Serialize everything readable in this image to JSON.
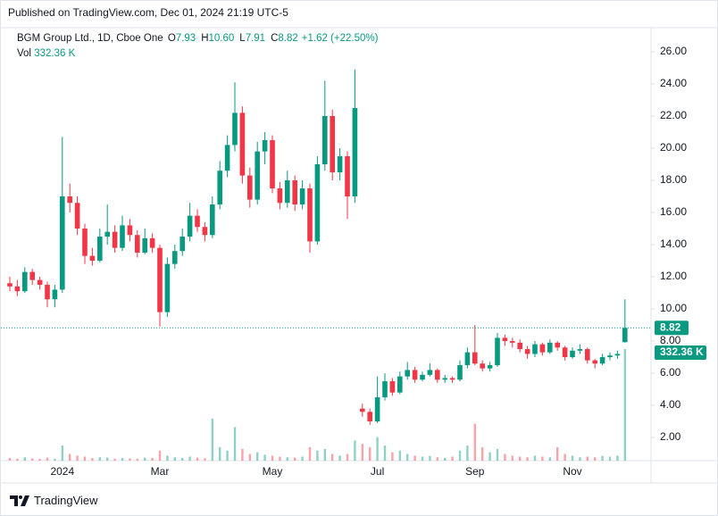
{
  "header": {
    "published": "Published on TradingView.com, Dec 01, 2024 21:19 UTC-5",
    "brand": "TradingView"
  },
  "chart_data": {
    "type": "candlestick",
    "title": "BGM Group Ltd., 1D, Cboe One",
    "ohlc_legend": [
      {
        "key": "O",
        "value": "7.93"
      },
      {
        "key": "H",
        "value": "10.60"
      },
      {
        "key": "L",
        "value": "7.91"
      },
      {
        "key": "C",
        "value": "8.82"
      }
    ],
    "change": "+1.62 (+22.50%)",
    "volume_title": "Vol",
    "volume_label": "332.36 K",
    "up_color": "#089981",
    "down_color": "#f23645",
    "categories": [
      null,
      null,
      null,
      null,
      null,
      null,
      null,
      "2024",
      null,
      null,
      null,
      null,
      null,
      null,
      null,
      null,
      null,
      null,
      null,
      null,
      "Mar",
      null,
      null,
      null,
      null,
      null,
      null,
      null,
      null,
      null,
      null,
      null,
      null,
      null,
      null,
      "May",
      null,
      null,
      null,
      null,
      null,
      null,
      null,
      null,
      null,
      null,
      null,
      null,
      null,
      "Jul",
      null,
      null,
      null,
      null,
      null,
      null,
      null,
      null,
      null,
      null,
      null,
      null,
      "Sep",
      null,
      null,
      null,
      null,
      null,
      null,
      null,
      null,
      null,
      null,
      null,
      null,
      "Nov",
      null,
      null,
      null,
      null,
      null,
      null,
      null
    ],
    "open": [
      11.6,
      11.4,
      11.1,
      12.3,
      11.8,
      11.5,
      10.6,
      11.2,
      17.0,
      16.6,
      15.0,
      13.3,
      13.0,
      14.5,
      14.8,
      13.8,
      15.2,
      14.6,
      13.5,
      14.4,
      13.8,
      9.8,
      12.8,
      13.6,
      14.5,
      15.8,
      15.1,
      14.6,
      16.5,
      18.6,
      20.2,
      22.2,
      18.3,
      16.8,
      19.8,
      20.5,
      17.5,
      16.6,
      18.0,
      16.5,
      17.5,
      14.2,
      19.0,
      22.0,
      18.5,
      19.5,
      17.0,
      3.8,
      3.6,
      3.0,
      4.5,
      5.5,
      4.8,
      5.8,
      6.2,
      5.6,
      5.9,
      6.2,
      5.6,
      5.7,
      5.6,
      6.5,
      7.3,
      6.6,
      6.3,
      6.5,
      8.2,
      8.0,
      7.9,
      7.5,
      7.2,
      7.8,
      7.3,
      7.9,
      7.6,
      7.0,
      7.4,
      7.5,
      6.8,
      6.6,
      7.0,
      7.1,
      7.93
    ],
    "high": [
      12.0,
      11.8,
      12.6,
      12.5,
      12.0,
      11.7,
      11.5,
      20.7,
      17.8,
      17.0,
      15.3,
      13.8,
      15.0,
      16.5,
      15.2,
      15.8,
      15.6,
      14.9,
      15.0,
      14.7,
      14.0,
      13.2,
      14.0,
      15.0,
      16.6,
      16.2,
      15.4,
      17.0,
      19.2,
      20.8,
      24.1,
      22.6,
      18.8,
      20.4,
      21.0,
      20.8,
      17.9,
      18.6,
      18.3,
      18.0,
      17.8,
      19.5,
      24.2,
      22.4,
      20.0,
      19.8,
      24.9,
      4.1,
      3.8,
      5.8,
      6.0,
      5.7,
      6.1,
      6.7,
      6.4,
      6.1,
      6.6,
      6.3,
      5.9,
      5.8,
      6.8,
      7.6,
      9.0,
      6.8,
      6.7,
      8.5,
      8.4,
      8.2,
      8.1,
      7.7,
      8.0,
      7.9,
      8.1,
      8.0,
      7.7,
      7.6,
      7.8,
      7.6,
      6.9,
      7.2,
      7.3,
      7.4,
      10.6
    ],
    "low": [
      11.1,
      10.8,
      11.0,
      11.5,
      11.2,
      10.1,
      10.1,
      11.0,
      16.0,
      14.6,
      12.8,
      12.7,
      12.9,
      14.0,
      13.5,
      13.6,
      14.2,
      13.2,
      13.4,
      13.5,
      8.9,
      9.5,
      12.5,
      13.3,
      14.2,
      14.8,
      14.2,
      14.4,
      16.2,
      18.2,
      19.8,
      17.8,
      16.3,
      16.5,
      19.0,
      17.2,
      16.2,
      16.3,
      16.1,
      16.2,
      13.5,
      14.0,
      18.6,
      18.0,
      18.0,
      15.6,
      16.6,
      3.3,
      2.8,
      2.9,
      4.3,
      4.6,
      4.7,
      5.6,
      5.4,
      5.5,
      5.8,
      5.4,
      5.4,
      5.4,
      5.5,
      6.3,
      6.5,
      6.1,
      6.1,
      6.4,
      7.7,
      7.6,
      7.3,
      6.9,
      7.0,
      7.1,
      7.2,
      7.4,
      6.8,
      6.9,
      7.2,
      6.6,
      6.3,
      6.5,
      6.8,
      6.9,
      7.91
    ],
    "close": [
      11.4,
      11.1,
      12.3,
      11.8,
      11.5,
      10.6,
      11.2,
      17.0,
      16.6,
      15.0,
      13.3,
      13.0,
      14.5,
      14.8,
      13.8,
      15.2,
      14.6,
      13.5,
      14.4,
      13.8,
      9.8,
      12.8,
      13.6,
      14.5,
      15.8,
      15.1,
      14.6,
      16.5,
      18.6,
      20.2,
      22.2,
      18.3,
      16.8,
      19.8,
      20.5,
      17.5,
      16.6,
      18.0,
      16.5,
      17.5,
      14.2,
      19.0,
      22.0,
      18.5,
      19.5,
      17.0,
      22.5,
      3.6,
      3.0,
      4.5,
      5.5,
      4.8,
      5.8,
      6.2,
      5.6,
      5.9,
      6.2,
      5.6,
      5.7,
      5.6,
      6.5,
      7.3,
      6.6,
      6.3,
      6.5,
      8.2,
      8.0,
      7.9,
      7.5,
      7.2,
      7.8,
      7.3,
      7.9,
      7.6,
      7.0,
      7.4,
      7.5,
      6.8,
      6.6,
      7.0,
      7.1,
      7.2,
      8.82
    ],
    "volume": [
      8,
      6,
      10,
      7,
      5,
      9,
      6,
      45,
      20,
      15,
      12,
      8,
      10,
      9,
      6,
      8,
      7,
      6,
      9,
      8,
      30,
      15,
      10,
      8,
      12,
      9,
      7,
      125,
      40,
      30,
      100,
      35,
      20,
      25,
      18,
      15,
      12,
      10,
      9,
      12,
      40,
      30,
      35,
      20,
      15,
      20,
      60,
      50,
      40,
      70,
      45,
      25,
      30,
      20,
      15,
      12,
      14,
      10,
      8,
      12,
      30,
      45,
      110,
      40,
      25,
      35,
      20,
      15,
      12,
      10,
      15,
      12,
      10,
      40,
      20,
      15,
      10,
      12,
      10,
      14,
      12,
      15,
      332.36
    ],
    "ylim": [
      0.56,
      27.5
    ],
    "yticks": [
      {
        "value": 2,
        "label": "2.00"
      },
      {
        "value": 4,
        "label": "4.00"
      },
      {
        "value": 6,
        "label": "6.00"
      },
      {
        "value": 8,
        "label": "8.00"
      },
      {
        "value": 10,
        "label": "10.00"
      },
      {
        "value": 12,
        "label": "12.00"
      },
      {
        "value": 14,
        "label": "14.00"
      },
      {
        "value": 16,
        "label": "16.00"
      },
      {
        "value": 18,
        "label": "18.00"
      },
      {
        "value": 20,
        "label": "20.00"
      },
      {
        "value": 22,
        "label": "22.00"
      },
      {
        "value": 24,
        "label": "24.00"
      },
      {
        "value": 26,
        "label": "26.00"
      }
    ],
    "grid": false
  }
}
